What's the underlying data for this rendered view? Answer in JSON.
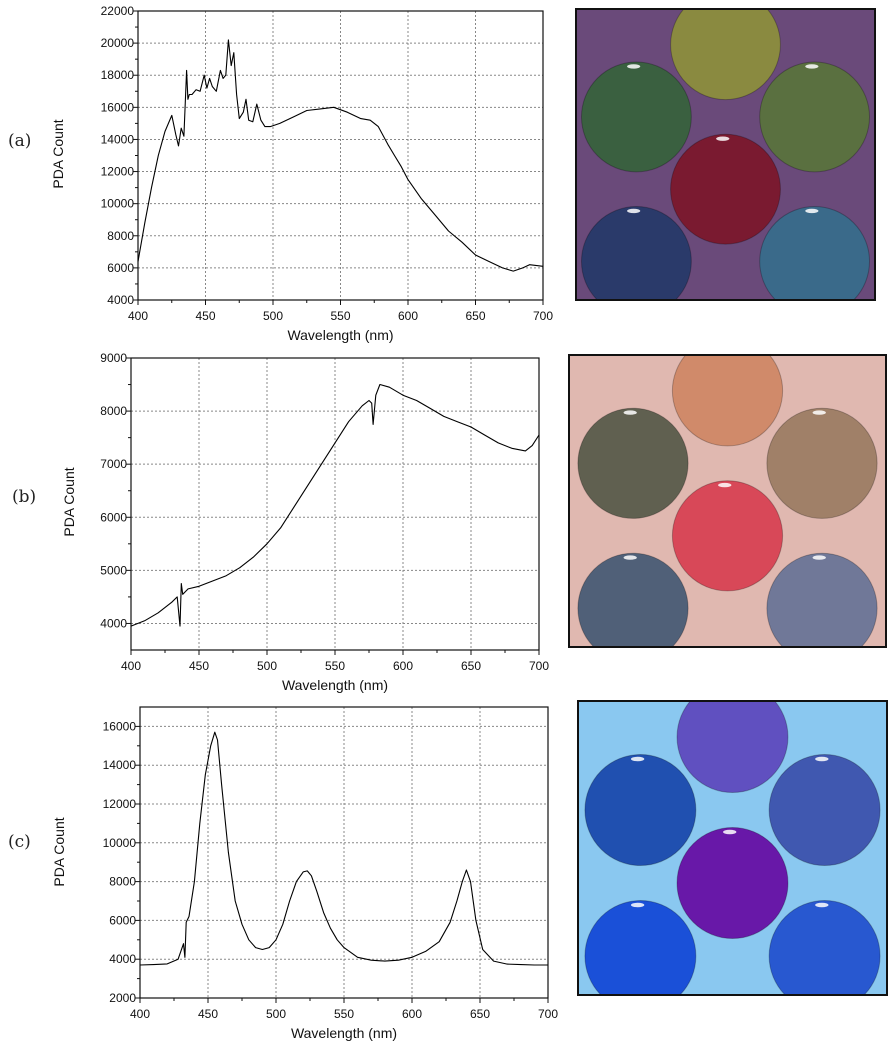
{
  "panels": [
    {
      "label": "(a)"
    },
    {
      "label": "(b)"
    },
    {
      "label": "(c)"
    }
  ],
  "chart_data": [
    {
      "type": "line",
      "xlabel": "Wavelength (nm)",
      "ylabel": "PDA Count",
      "xlim": [
        400,
        700
      ],
      "ylim": [
        4000,
        22000
      ],
      "xticks": [
        400,
        450,
        500,
        550,
        600,
        650,
        700
      ],
      "yticks": [
        4000,
        6000,
        8000,
        10000,
        12000,
        14000,
        16000,
        18000,
        20000,
        22000
      ],
      "grid": true,
      "series": [
        {
          "x": [
            400,
            405,
            410,
            415,
            420,
            425,
            428,
            430,
            432,
            434,
            436,
            437,
            438,
            440,
            443,
            446,
            449,
            451,
            453,
            455,
            458,
            461,
            463,
            465,
            467,
            469,
            471,
            473,
            475,
            478,
            480,
            482,
            485,
            488,
            491,
            494,
            498,
            505,
            515,
            525,
            535,
            545,
            555,
            565,
            572,
            578,
            585,
            590,
            595,
            600,
            610,
            620,
            630,
            640,
            650,
            660,
            670,
            678,
            685,
            690,
            700
          ],
          "y": [
            6400,
            8800,
            11000,
            13000,
            14500,
            15500,
            14300,
            13600,
            14700,
            14200,
            18300,
            16500,
            16800,
            16800,
            17100,
            17000,
            18000,
            17200,
            17800,
            17300,
            17000,
            18300,
            17800,
            18000,
            20200,
            18600,
            19400,
            16800,
            15300,
            15700,
            16500,
            15200,
            15100,
            16200,
            15200,
            14800,
            14800,
            15000,
            15400,
            15800,
            15900,
            16000,
            15700,
            15300,
            15200,
            14800,
            13700,
            13000,
            12300,
            11500,
            10300,
            9300,
            8300,
            7600,
            6800,
            6400,
            6000,
            5800,
            6000,
            6200,
            6100
          ]
        }
      ]
    },
    {
      "type": "line",
      "xlabel": "Wavelength (nm)",
      "ylabel": "PDA Count",
      "xlim": [
        400,
        700
      ],
      "ylim": [
        3500,
        9000
      ],
      "xticks": [
        400,
        450,
        500,
        550,
        600,
        650,
        700
      ],
      "yticks": [
        4000,
        5000,
        6000,
        7000,
        8000,
        9000
      ],
      "grid": true,
      "series": [
        {
          "x": [
            400,
            410,
            420,
            430,
            434,
            436,
            437,
            438,
            440,
            442,
            450,
            460,
            470,
            480,
            490,
            500,
            510,
            520,
            530,
            540,
            550,
            560,
            570,
            575,
            577,
            578,
            580,
            583,
            590,
            600,
            610,
            620,
            630,
            640,
            650,
            660,
            670,
            680,
            690,
            695,
            700
          ],
          "y": [
            3950,
            4050,
            4200,
            4400,
            4500,
            3950,
            4750,
            4550,
            4600,
            4650,
            4700,
            4800,
            4900,
            5050,
            5250,
            5500,
            5800,
            6200,
            6600,
            7000,
            7400,
            7800,
            8100,
            8200,
            8150,
            7750,
            8300,
            8500,
            8450,
            8300,
            8200,
            8050,
            7900,
            7800,
            7700,
            7550,
            7400,
            7300,
            7250,
            7350,
            7550
          ]
        }
      ]
    },
    {
      "type": "line",
      "xlabel": "Wavelength (nm)",
      "ylabel": "PDA Count",
      "xlim": [
        400,
        700
      ],
      "ylim": [
        2000,
        17000
      ],
      "xticks": [
        400,
        450,
        500,
        550,
        600,
        650,
        700
      ],
      "yticks": [
        2000,
        4000,
        6000,
        8000,
        10000,
        12000,
        14000,
        16000
      ],
      "grid": true,
      "series": [
        {
          "x": [
            400,
            410,
            420,
            428,
            432,
            433,
            434,
            436,
            440,
            444,
            448,
            452,
            455,
            457,
            460,
            465,
            470,
            475,
            480,
            485,
            490,
            495,
            500,
            505,
            510,
            515,
            520,
            523,
            526,
            530,
            535,
            540,
            545,
            550,
            560,
            570,
            580,
            590,
            600,
            610,
            620,
            628,
            633,
            637,
            640,
            643,
            647,
            652,
            660,
            670,
            680,
            690,
            700
          ],
          "y": [
            3700,
            3720,
            3760,
            4000,
            4800,
            4100,
            5900,
            6200,
            8000,
            11000,
            13500,
            15000,
            15700,
            15300,
            13000,
            9500,
            7000,
            5800,
            5000,
            4600,
            4500,
            4600,
            5000,
            5800,
            7000,
            8000,
            8500,
            8550,
            8300,
            7500,
            6400,
            5600,
            5000,
            4600,
            4100,
            3950,
            3900,
            3950,
            4100,
            4400,
            4900,
            5900,
            7000,
            8000,
            8600,
            8000,
            6000,
            4500,
            3900,
            3750,
            3720,
            3700,
            3700
          ]
        }
      ]
    }
  ],
  "photos": [
    {
      "background": "#6a4a7a",
      "circles": [
        "#8a8a40",
        "#3a6040",
        "#5a7040",
        "#7a1a30",
        "#2a3a6a",
        "#3a6a8a"
      ]
    },
    {
      "background": "#e0b8b0",
      "circles": [
        "#d08a6a",
        "#606050",
        "#a08068",
        "#d84858",
        "#506078",
        "#707898"
      ]
    },
    {
      "background": "#8ac8f0",
      "circles": [
        "#6050c0",
        "#2050b0",
        "#4058b0",
        "#6818a8",
        "#1a50d8",
        "#2858d0"
      ]
    }
  ]
}
